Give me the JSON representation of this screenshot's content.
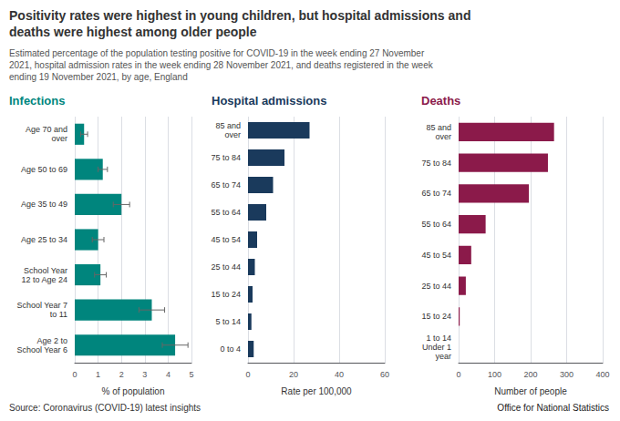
{
  "title": "Positivity rates were highest in young children, but hospital admissions and\ndeaths were highest among older people",
  "subtitle": "Estimated percentage of the population testing positive for COVID-19 in the week ending 27 November\n2021, hospital admission rates in the week ending 28 November 2021, and deaths registered in the week\nending 19 November 2021, by age, England",
  "annotations": [
    "Source: Coronavirus (COVID-19) latest insights",
    "Office for National Statistics"
  ],
  "chart_data": [
    {
      "type": "bar",
      "title": "Infections",
      "orientation": "horizontal",
      "color": "#00857d",
      "categories": [
        "Age 70 and\nover",
        "Age 50 to 69",
        "Age 35 to 49",
        "Age 25 to 34",
        "School Year\n12 to Age 24",
        "School Year 7\nto 11",
        "Age 2 to\nSchool Year 6"
      ],
      "values": [
        0.4,
        1.2,
        2.0,
        1.0,
        1.1,
        3.3,
        4.3
      ],
      "errors": [
        0.15,
        0.2,
        0.35,
        0.25,
        0.25,
        0.55,
        0.55
      ],
      "xlabel": "% of population",
      "xlim": [
        0,
        5
      ],
      "xticks": [
        0,
        1,
        2,
        3,
        4,
        5
      ],
      "grid": true
    },
    {
      "type": "bar",
      "title": "Hospital admissions",
      "orientation": "horizontal",
      "color": "#1a3a5c",
      "categories": [
        "85 and\nover",
        "75 to 84",
        "65 to 74",
        "55 to 64",
        "45 to 54",
        "25 to 44",
        "15 to 24",
        "5 to 14",
        "0 to 4"
      ],
      "values": [
        27,
        16,
        11,
        8,
        4,
        3,
        2,
        1.5,
        2.5
      ],
      "xlabel": "Rate per 100,000",
      "xlim": [
        0,
        60
      ],
      "xticks": [
        0,
        20,
        40,
        60
      ],
      "grid": true
    },
    {
      "type": "bar",
      "title": "Deaths",
      "orientation": "horizontal",
      "color": "#8b1a4a",
      "categories": [
        "85 and\nover",
        "75 to 84",
        "65 to 74",
        "55 to 64",
        "45 to 54",
        "25 to 44",
        "15 to 24",
        "1 to 14\nUnder 1\nyear"
      ],
      "values": [
        265,
        248,
        195,
        75,
        35,
        20,
        3,
        0
      ],
      "xlabel": "Number of people",
      "xlim": [
        0,
        400
      ],
      "xticks": [
        0,
        100,
        200,
        300,
        400
      ],
      "grid": true
    }
  ]
}
